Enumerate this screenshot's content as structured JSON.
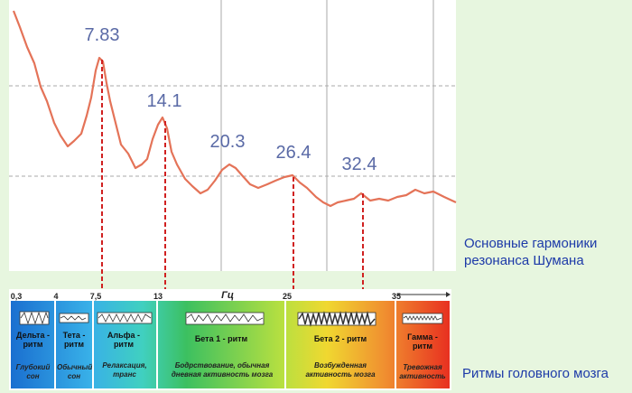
{
  "peaks": [
    "7.83",
    "14.1",
    "20.3",
    "26.4",
    "32.4"
  ],
  "scale": {
    "marks": [
      "0,3",
      "4",
      "7,5",
      "13",
      "25",
      "35"
    ],
    "unit": "Гц"
  },
  "bands": [
    {
      "name": "Дельта - ритм",
      "description": "Глубокий сон"
    },
    {
      "name": "Тета - ритм",
      "description": "Обычный сон"
    },
    {
      "name": "Альфа - ритм",
      "description": "Релаксация, транс"
    },
    {
      "name": "Бета 1 - ритм",
      "description": "Бодрствование, обычная дневная активность мозга"
    },
    {
      "name": "Бета 2 - ритм",
      "description": "Возбужденная активность мозга"
    },
    {
      "name": "Гамма - ритм",
      "description": "Тревожная активность"
    }
  ],
  "captions": {
    "harmonics": "Основные гармоники резонанса Шумана",
    "rhythms": "Ритмы головного мозга"
  }
}
